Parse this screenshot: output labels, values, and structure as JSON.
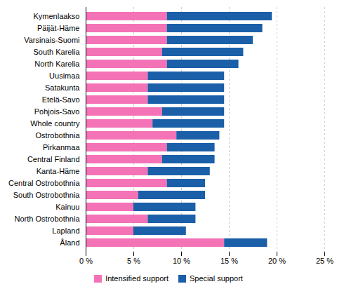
{
  "chart_data": {
    "type": "bar",
    "orientation": "horizontal",
    "stacked": true,
    "categories": [
      "Kymenlaakso",
      "Päijät-Häme",
      "Varsinais-Suomi",
      "South Karelia",
      "North Karelia",
      "Uusimaa",
      "Satakunta",
      "Etelä-Savo",
      "Pohjois-Savo",
      "Whole country",
      "Ostrobothnia",
      "Pirkanmaa",
      "Central Finland",
      "Kanta-Häme",
      "Central Ostrobothnia",
      "South Ostrobothnia",
      "Kainuu",
      "North Ostrobothnia",
      "Lapland",
      "Åland"
    ],
    "series": [
      {
        "name": "Intensified support",
        "color": "#F472B6",
        "values": [
          8.5,
          8.5,
          8.5,
          8.0,
          8.5,
          6.5,
          6.5,
          6.5,
          8.0,
          7.0,
          9.5,
          8.5,
          8.0,
          6.5,
          8.5,
          5.5,
          5.0,
          6.5,
          5.0,
          14.5
        ]
      },
      {
        "name": "Special support",
        "color": "#1A5FA8",
        "values": [
          11.0,
          10.0,
          9.0,
          8.5,
          7.5,
          8.0,
          8.0,
          8.0,
          6.5,
          7.5,
          4.5,
          5.0,
          5.5,
          6.5,
          4.0,
          7.0,
          6.5,
          5.0,
          5.5,
          4.5
        ]
      }
    ],
    "xlim": [
      0,
      25
    ],
    "xticks": [
      {
        "value": 0,
        "label": "0 %"
      },
      {
        "value": 5,
        "label": "5 %"
      },
      {
        "value": 10,
        "label": "10 %"
      },
      {
        "value": 15,
        "label": "15 %"
      },
      {
        "value": 20,
        "label": "20 %"
      },
      {
        "value": 25,
        "label": "25 %"
      }
    ],
    "grid": true,
    "legend": "bottom"
  }
}
